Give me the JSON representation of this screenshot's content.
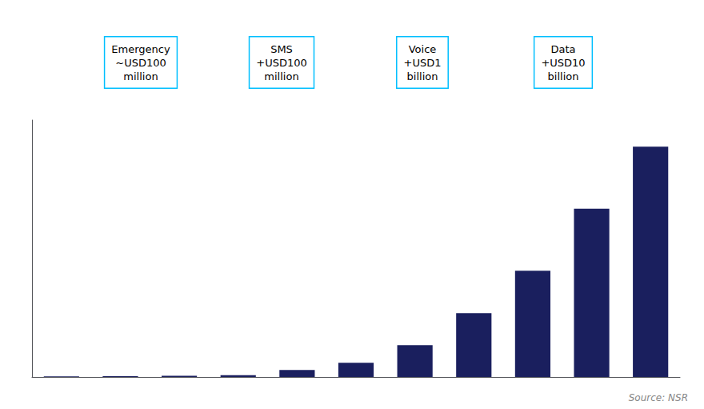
{
  "chart_data": {
    "type": "bar",
    "categories": [
      null,
      null,
      null,
      null,
      null,
      null,
      null,
      null,
      null,
      null,
      null
    ],
    "values": [
      0.3,
      0.5,
      0.7,
      1.0,
      4.0,
      8.0,
      18.0,
      36.0,
      60.0,
      95.0,
      130.0
    ],
    "color": "#1a1f5e",
    "ylim": [
      0,
      145
    ],
    "grid": false,
    "tick_labels": false,
    "annotations": [
      "Emergency\n~USD100\nmillion",
      "SMS\n+USD100\nmillion",
      "Voice\n+USD1\nbillion",
      "Data\n+USD10\nbillion"
    ],
    "source": "Source: NSR"
  }
}
